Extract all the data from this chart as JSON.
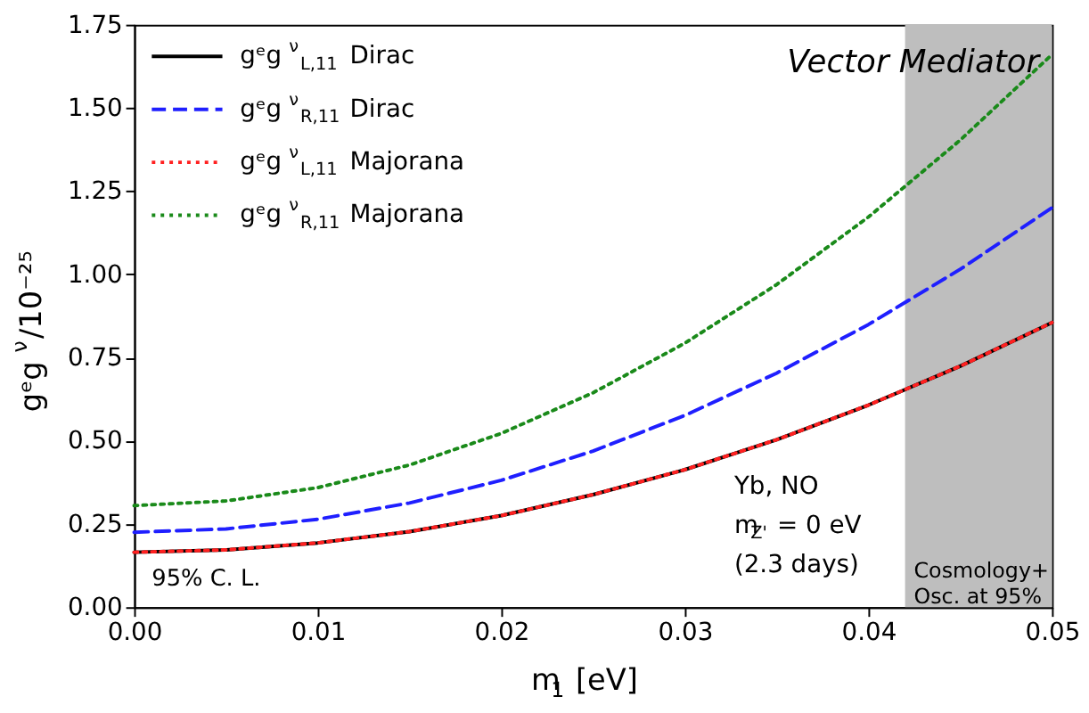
{
  "chart_data": {
    "type": "line",
    "xlabel": "m$_{1}$ [eV]",
    "ylabel": "gᵉg$^{ν}$/10⁻²⁵",
    "x": [
      0,
      0.005,
      0.01,
      0.015,
      0.02,
      0.025,
      0.03,
      0.035,
      0.04,
      0.045,
      0.05
    ],
    "series": [
      {
        "name": "gᵉg$^{ν}$$_{L,11}$ Dirac",
        "color": "#000000",
        "line_style": "solid",
        "values": [
          0.165,
          0.172,
          0.193,
          0.227,
          0.275,
          0.338,
          0.413,
          0.503,
          0.607,
          0.724,
          0.855
        ]
      },
      {
        "name": "gᵉg$^{ν}$$_{R,11}$ Dirac",
        "color": "#1f1fff",
        "line_style": "dashed",
        "values": [
          0.225,
          0.235,
          0.264,
          0.313,
          0.381,
          0.469,
          0.576,
          0.703,
          0.849,
          1.015,
          1.2
        ]
      },
      {
        "name": "gᵉg$^{ν}$$_{L,11}$ Majorana",
        "color": "#ff2020",
        "line_style": "dotted",
        "values": [
          0.165,
          0.172,
          0.193,
          0.227,
          0.275,
          0.338,
          0.413,
          0.503,
          0.607,
          0.724,
          0.855
        ]
      },
      {
        "name": "gᵉg$^{ν}$$_{R,11}$ Majorana",
        "color": "#1a8a1a",
        "line_style": "dotted",
        "values": [
          0.305,
          0.319,
          0.359,
          0.427,
          0.522,
          0.644,
          0.793,
          0.969,
          1.172,
          1.403,
          1.66
        ]
      }
    ],
    "xlim": [
      0,
      0.05
    ],
    "xticks": [
      {
        "value": 0,
        "label": "0.00"
      },
      0.01,
      0.02,
      0.03,
      0.04,
      0.05
    ],
    "ylim": [
      0,
      1.75
    ],
    "yticks": [
      {
        "value": 0,
        "label": "0.00"
      },
      0.25,
      {
        "value": 0.5,
        "label": "0.50"
      },
      0.75,
      {
        "value": 1,
        "label": "1.00"
      },
      1.25,
      {
        "value": 1.5,
        "label": "1.50"
      },
      1.75
    ],
    "bands": [
      {
        "axis": "x",
        "from": 0.042,
        "to": 0.05,
        "label": "Cosmology+\nOsc. at 95%",
        "color": "#bebebe"
      }
    ],
    "annotations": [
      "Vector Mediator",
      "Yb, NO",
      "m$_{Z'}$ = 0 eV",
      "(2.3 days)",
      "95% C. L."
    ],
    "legend": "top left",
    "grid": false
  }
}
